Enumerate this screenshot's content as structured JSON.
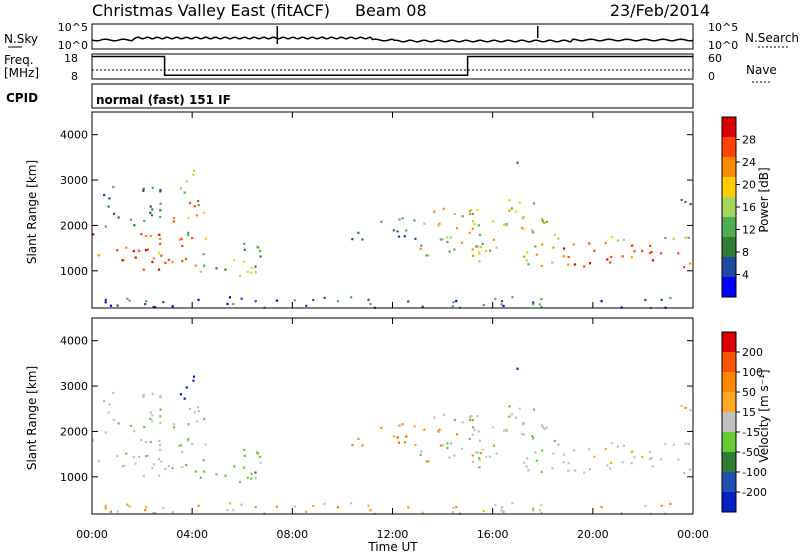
{
  "header": {
    "station": "Christmas Valley East (fitACF)",
    "beam": "Beam 08",
    "date": "23/Feb/2014"
  },
  "status_panel": {
    "nsky_label": "N.Sky",
    "nsky_tick_top": "10^5",
    "nsky_tick_bottom": "10^0",
    "nsearch_label": "N.Search",
    "nsearch_tick_top": "10^5",
    "nsearch_tick_bottom": "10^0",
    "freq_label_1": "Freq.",
    "freq_label_2": "[MHz]",
    "freq_tick_top": "18",
    "freq_tick_bottom": "8",
    "nave_label": "Nave",
    "nave_tick_top": "60",
    "nave_tick_bottom": "0",
    "cpid_label": "CPID",
    "cpid_value": "normal (fast) 151 IF"
  },
  "colors": {
    "power_scale": [
      "#0000ff",
      "#1e4ba0",
      "#2e7d32",
      "#4caf50",
      "#a4d65e",
      "#ffcc00",
      "#ff8c00",
      "#ff4500",
      "#dd0000"
    ],
    "velocity_scale": [
      "#0020c0",
      "#2050b0",
      "#2e7d32",
      "#66cc33",
      "#c0c0c0",
      "#ffaa22",
      "#ff8800",
      "#ff5500",
      "#dd0000"
    ]
  },
  "chart_data": [
    {
      "type": "heatmap",
      "name": "power",
      "ylabel": "Slant Range [km]",
      "ylim": [
        180,
        4500
      ],
      "yticks": [
        "1000",
        "2000",
        "3000",
        "4000"
      ],
      "xlim": [
        0,
        24
      ],
      "colorbar_label": "Power [dB]",
      "colorbar_ticks": [
        "4",
        "8",
        "12",
        "16",
        "20",
        "24",
        "28"
      ],
      "colorbar_range": [
        0,
        32
      ]
    },
    {
      "type": "heatmap",
      "name": "velocity",
      "ylabel": "Slant Range [km]",
      "ylim": [
        180,
        4500
      ],
      "yticks": [
        "1000",
        "2000",
        "3000",
        "4000"
      ],
      "xlim": [
        0,
        24
      ],
      "colorbar_label": "Velocity [m s⁻¹]",
      "colorbar_ticks": [
        "200",
        "100",
        "50",
        "15",
        "-15",
        "-50",
        "-100",
        "-200"
      ],
      "xticks": [
        "00:00",
        "04:00",
        "08:00",
        "12:00",
        "16:00",
        "20:00",
        "00:00"
      ],
      "xlabel": "Time UT"
    }
  ],
  "frequency_series": {
    "times": [
      0,
      2.9,
      2.9,
      15.0,
      15.0,
      24
    ],
    "values": [
      17.0,
      17.0,
      9.5,
      9.5,
      17.0,
      17.0
    ]
  }
}
